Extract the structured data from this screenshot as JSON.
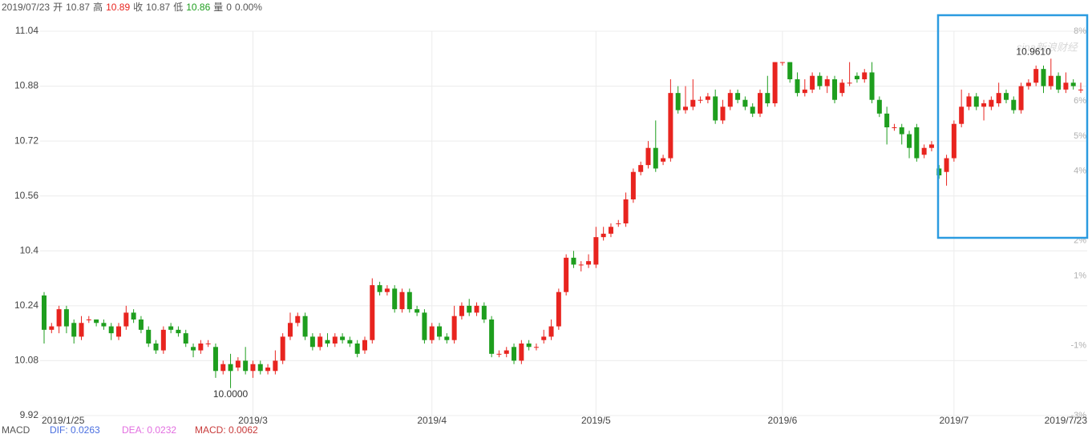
{
  "chart_data": {
    "type": "candlestick",
    "header": {
      "date": "2019/07/23",
      "items": [
        {
          "label": "开",
          "value": "10.87",
          "color": "#555555"
        },
        {
          "label": "高",
          "value": "10.89",
          "color": "#e8241f"
        },
        {
          "label": "收",
          "value": "10.87",
          "color": "#555555"
        },
        {
          "label": "低",
          "value": "10.86",
          "color": "#1e9e1e"
        },
        {
          "label": "量",
          "value": "0",
          "color": "#555555"
        }
      ],
      "change": "0.00%"
    },
    "categories": [
      "2019/1/25",
      null,
      null,
      null,
      null,
      null,
      null,
      null,
      null,
      null,
      null,
      null,
      null,
      null,
      null,
      null,
      null,
      null,
      null,
      null,
      null,
      null,
      null,
      null,
      null,
      null,
      null,
      null,
      "2019/3",
      null,
      null,
      null,
      null,
      null,
      null,
      null,
      null,
      null,
      null,
      null,
      null,
      null,
      null,
      null,
      null,
      null,
      null,
      null,
      null,
      null,
      null,
      null,
      "2019/4",
      null,
      null,
      null,
      null,
      null,
      null,
      null,
      null,
      null,
      null,
      null,
      null,
      null,
      null,
      null,
      null,
      null,
      null,
      null,
      null,
      null,
      "2019/5",
      null,
      null,
      null,
      null,
      null,
      null,
      null,
      null,
      null,
      null,
      null,
      null,
      null,
      null,
      null,
      null,
      null,
      null,
      null,
      null,
      null,
      null,
      null,
      null,
      "2019/6",
      null,
      null,
      null,
      null,
      null,
      null,
      null,
      null,
      null,
      null,
      null,
      null,
      null,
      null,
      null,
      null,
      null,
      null,
      null,
      null,
      null,
      null,
      "2019/7",
      null,
      null,
      null,
      null,
      null,
      null,
      null,
      null,
      null,
      null,
      null,
      null,
      null,
      null,
      null,
      null,
      "2019/7/23"
    ],
    "open": [
      10.27,
      10.17,
      10.18,
      10.23,
      10.19,
      10.15,
      10.2,
      10.2,
      10.19,
      10.18,
      10.15,
      10.18,
      10.22,
      10.2,
      10.17,
      10.13,
      10.11,
      10.18,
      10.17,
      10.16,
      10.12,
      10.11,
      10.13,
      10.12,
      10.05,
      10.07,
      10.06,
      10.08,
      10.05,
      10.07,
      10.05,
      10.05,
      10.08,
      10.15,
      10.19,
      10.21,
      10.15,
      10.12,
      10.14,
      10.13,
      10.15,
      10.14,
      10.13,
      10.11,
      10.14,
      10.3,
      10.28,
      10.29,
      10.23,
      10.28,
      10.23,
      10.22,
      10.14,
      10.18,
      10.15,
      10.14,
      10.21,
      10.24,
      10.22,
      10.24,
      10.2,
      10.1,
      10.1,
      10.12,
      10.08,
      10.13,
      10.12,
      10.14,
      10.15,
      10.18,
      10.28,
      10.38,
      10.36,
      10.36,
      10.36,
      10.44,
      10.45,
      10.48,
      10.48,
      10.55,
      10.63,
      10.65,
      10.7,
      10.66,
      10.67,
      10.86,
      10.81,
      10.82,
      10.84,
      10.84,
      10.85,
      10.78,
      10.82,
      10.86,
      10.84,
      10.82,
      10.8,
      10.86,
      10.83,
      10.95,
      10.95,
      10.9,
      10.86,
      10.87,
      10.91,
      10.88,
      10.9,
      10.86,
      10.89,
      10.91,
      10.9,
      10.92,
      10.84,
      10.8,
      10.76,
      10.76,
      10.74,
      10.76,
      10.68,
      10.7,
      10.64,
      10.63,
      10.67,
      10.77,
      10.82,
      10.85,
      10.82,
      10.82,
      10.83,
      10.86,
      10.84,
      10.81,
      10.88,
      10.89,
      10.93,
      10.88,
      10.91,
      10.87,
      10.89,
      10.87
    ],
    "high": [
      10.28,
      10.19,
      10.24,
      10.24,
      10.2,
      10.21,
      10.21,
      10.2,
      10.2,
      10.19,
      10.19,
      10.24,
      10.23,
      10.21,
      10.18,
      10.14,
      10.18,
      10.19,
      10.18,
      10.17,
      10.13,
      10.14,
      10.14,
      10.13,
      10.08,
      10.1,
      10.09,
      10.12,
      10.08,
      10.08,
      10.07,
      10.11,
      10.16,
      10.22,
      10.22,
      10.22,
      10.16,
      10.16,
      10.16,
      10.16,
      10.16,
      10.15,
      10.14,
      10.15,
      10.32,
      10.31,
      10.3,
      10.3,
      10.29,
      10.29,
      10.24,
      10.23,
      10.19,
      10.19,
      10.16,
      10.24,
      10.25,
      10.26,
      10.25,
      10.25,
      10.21,
      10.11,
      10.12,
      10.13,
      10.14,
      10.14,
      10.13,
      10.17,
      10.2,
      10.29,
      10.39,
      10.4,
      10.37,
      10.39,
      10.47,
      10.47,
      10.48,
      10.49,
      10.57,
      10.64,
      10.66,
      10.72,
      10.78,
      10.68,
      10.9,
      10.88,
      10.88,
      10.9,
      10.85,
      10.86,
      10.87,
      10.84,
      10.87,
      10.87,
      10.85,
      10.83,
      10.87,
      10.91,
      10.95,
      10.95,
      10.95,
      10.92,
      10.9,
      10.92,
      10.92,
      10.91,
      10.91,
      10.9,
      10.95,
      10.92,
      10.93,
      10.95,
      10.85,
      10.82,
      10.77,
      10.77,
      10.75,
      10.77,
      10.71,
      10.72,
      10.65,
      10.68,
      10.78,
      10.87,
      10.86,
      10.86,
      10.84,
      10.85,
      10.89,
      10.87,
      10.85,
      10.89,
      10.9,
      10.94,
      10.94,
      10.96,
      10.92,
      10.92,
      10.9,
      10.89
    ],
    "low": [
      10.13,
      10.16,
      10.16,
      10.16,
      10.13,
      10.14,
      10.19,
      10.18,
      10.17,
      10.14,
      10.14,
      10.17,
      10.19,
      10.16,
      10.12,
      10.1,
      10.1,
      10.16,
      10.15,
      10.12,
      10.09,
      10.1,
      10.12,
      10.03,
      10.04,
      10.0,
      10.05,
      10.04,
      10.03,
      10.04,
      10.04,
      10.04,
      10.07,
      10.14,
      10.18,
      10.14,
      10.11,
      10.11,
      10.12,
      10.12,
      10.13,
      10.12,
      10.09,
      10.1,
      10.13,
      10.27,
      10.27,
      10.22,
      10.22,
      10.22,
      10.21,
      10.13,
      10.13,
      10.14,
      10.13,
      10.13,
      10.2,
      10.21,
      10.21,
      10.19,
      10.09,
      10.09,
      10.09,
      10.07,
      10.07,
      10.11,
      10.11,
      10.13,
      10.14,
      10.17,
      10.27,
      10.35,
      10.34,
      10.35,
      10.35,
      10.43,
      10.44,
      10.47,
      10.47,
      10.54,
      10.62,
      10.64,
      10.63,
      10.65,
      10.66,
      10.8,
      10.8,
      10.81,
      10.83,
      10.83,
      10.77,
      10.77,
      10.81,
      10.83,
      10.81,
      10.79,
      10.79,
      10.82,
      10.82,
      10.94,
      10.89,
      10.85,
      10.85,
      10.86,
      10.87,
      10.86,
      10.83,
      10.85,
      10.88,
      10.89,
      10.89,
      10.83,
      10.79,
      10.71,
      10.75,
      10.71,
      10.67,
      10.66,
      10.67,
      10.69,
      10.61,
      10.59,
      10.66,
      10.76,
      10.81,
      10.81,
      10.78,
      10.81,
      10.82,
      10.83,
      10.8,
      10.8,
      10.87,
      10.88,
      10.86,
      10.87,
      10.86,
      10.86,
      10.87,
      10.86
    ],
    "close": [
      10.17,
      10.18,
      10.23,
      10.18,
      10.15,
      10.19,
      10.2,
      10.19,
      10.18,
      10.16,
      10.18,
      10.22,
      10.2,
      10.17,
      10.13,
      10.11,
      10.17,
      10.17,
      10.16,
      10.13,
      10.11,
      10.13,
      10.13,
      10.05,
      10.07,
      10.05,
      10.08,
      10.05,
      10.07,
      10.05,
      10.06,
      10.08,
      10.15,
      10.19,
      10.21,
      10.15,
      10.12,
      10.15,
      10.13,
      10.15,
      10.14,
      10.13,
      10.1,
      10.14,
      10.3,
      10.28,
      10.29,
      10.23,
      10.28,
      10.23,
      10.22,
      10.14,
      10.18,
      10.15,
      10.14,
      10.21,
      10.24,
      10.22,
      10.24,
      10.2,
      10.1,
      10.1,
      10.11,
      10.08,
      10.13,
      10.12,
      10.12,
      10.15,
      10.18,
      10.28,
      10.38,
      10.36,
      10.36,
      10.37,
      10.44,
      10.45,
      10.47,
      10.48,
      10.55,
      10.63,
      10.65,
      10.7,
      10.64,
      10.67,
      10.86,
      10.81,
      10.82,
      10.84,
      10.84,
      10.85,
      10.78,
      10.82,
      10.86,
      10.84,
      10.82,
      10.8,
      10.86,
      10.83,
      10.95,
      10.95,
      10.9,
      10.86,
      10.87,
      10.91,
      10.88,
      10.9,
      10.84,
      10.89,
      10.89,
      10.9,
      10.92,
      10.84,
      10.8,
      10.76,
      10.76,
      10.74,
      10.7,
      10.67,
      10.7,
      10.71,
      10.62,
      10.67,
      10.77,
      10.82,
      10.85,
      10.82,
      10.83,
      10.84,
      10.86,
      10.84,
      10.81,
      10.88,
      10.89,
      10.93,
      10.88,
      10.91,
      10.87,
      10.89,
      10.88,
      10.87
    ],
    "up_color": "#e8241f",
    "down_color": "#1e9e1e",
    "low_label": "10.0000",
    "high_label": "10.9610",
    "ylim": [
      9.92,
      11.04
    ],
    "yticks": [
      9.92,
      10.08,
      10.24,
      10.4,
      10.56,
      10.72,
      10.88,
      11.04
    ],
    "y2lim": [
      -3,
      8
    ],
    "y2ticks": [
      {
        "value": 8,
        "label": "8%"
      },
      {
        "value": 6,
        "label": "6%"
      },
      {
        "value": 5,
        "label": "5%"
      },
      {
        "value": 4,
        "label": "4%"
      },
      {
        "value": 2,
        "label": "2%"
      },
      {
        "value": 1,
        "label": "1%"
      },
      {
        "value": -1,
        "label": "-1%"
      },
      {
        "value": -3,
        "label": "-3%"
      }
    ],
    "grid": true,
    "watermark": "sina新浪财经",
    "indicators": [
      {
        "text": "MACD",
        "color": "#555555"
      },
      {
        "text": "DIF: 0.0263",
        "color": "#4a6fe0"
      },
      {
        "text": "DEA: 0.0232",
        "color": "#e26ee0"
      },
      {
        "text": "MACD: 0.0062",
        "color": "#c83a3a"
      }
    ]
  }
}
